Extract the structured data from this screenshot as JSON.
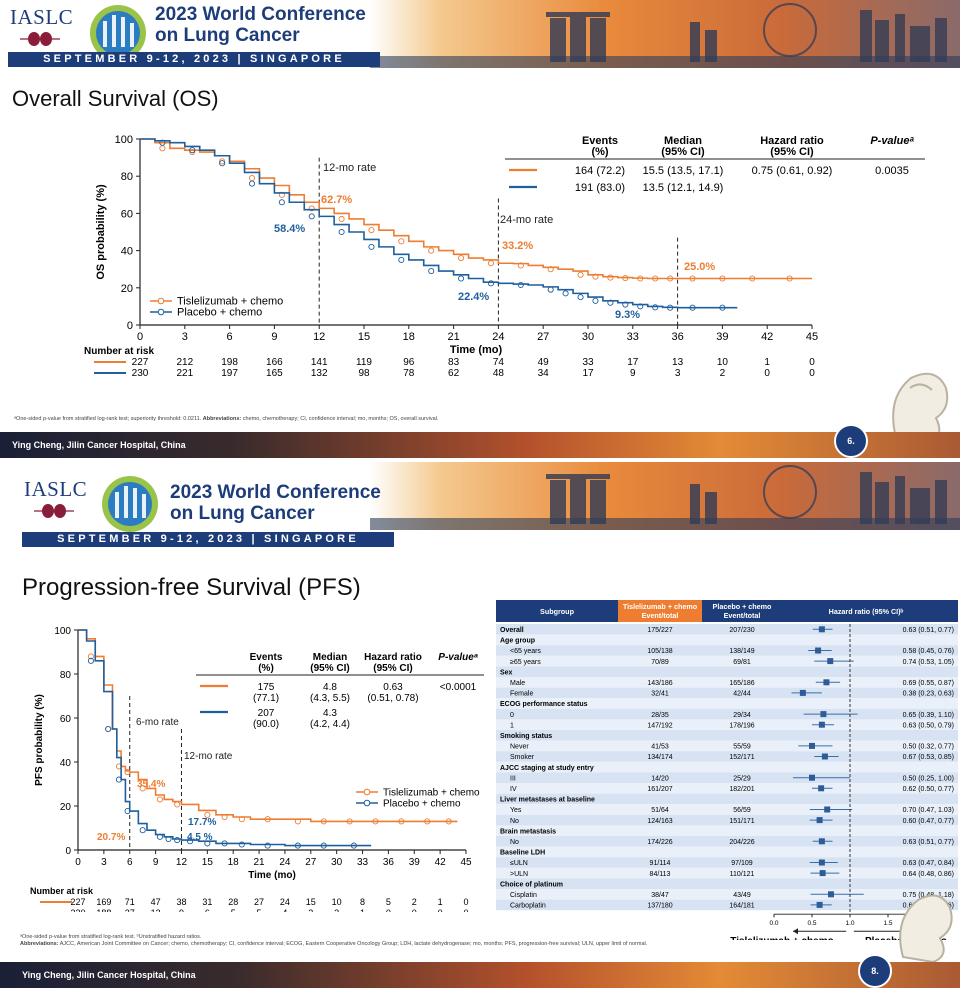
{
  "header": {
    "org": "IASLC",
    "conference_line1": "2023 World Conference",
    "conference_line2": "on Lung Cancer",
    "dates": "SEPTEMBER 9-12, 2023 | SINGAPORE"
  },
  "slides": [
    {
      "title": "Overall Survival (OS)",
      "footnote_lead": "ᵃOne-sided p-value from stratified log-rank test; superiority threshold: 0.0211. ",
      "footnote_abbr_label": "Abbreviations:",
      "footnote_abbr_text": " chemo, chemotherapy; CI, confidence interval; mo, months; OS, overall survival.",
      "footer": "Ying Cheng, Jilin Cancer Hospital, China",
      "page": "6.",
      "table": {
        "headers": [
          "Events\n(%)",
          "Median\n(95% CI)",
          "Hazard ratio\n(95% CI)",
          "P-valueᵃ"
        ],
        "rows": [
          {
            "events": "164 (72.2)",
            "median": "15.5 (13.5, 17.1)",
            "hr": "0.75 (0.61, 0.92)",
            "p": "0.0035"
          },
          {
            "events": "191 (83.0)",
            "median": "13.5 (12.1, 14.9)",
            "hr": "",
            "p": ""
          }
        ]
      }
    },
    {
      "title": "Progression-free Survival (PFS)",
      "footnote1": "ᵃOne-sided p-value from stratified log-rank test. ᵇUnstratified hazard ratios.",
      "footnote2_label": "Abbreviations:",
      "footnote2_text": " AJCC, American Joint Committee on Cancer; chemo, chemotherapy; CI, confidence interval; ECOG, Eastern Cooperative Oncology Group; LDH, lactate dehydrogenase; mo, months; PFS, progression-free survival; ULN, upper limit of normal.",
      "footer": "Ying Cheng, Jilin Cancer Hospital, China",
      "page": "8.",
      "table": {
        "headers": [
          "Events\n(%)",
          "Median\n(95% CI)",
          "Hazard ratio\n(95% CI)",
          "P-valueᵃ"
        ],
        "rows": [
          {
            "events": "175\n(77.1)",
            "median": "4.8\n(4.3, 5.5)",
            "hr": "0.63\n(0.51, 0.78)",
            "p": "<0.0001"
          },
          {
            "events": "207\n(90.0)",
            "median": "4.3\n(4.2, 4.4)",
            "hr": "",
            "p": ""
          }
        ]
      }
    }
  ],
  "colors": {
    "tislelizumab": "#ee7d31",
    "placebo": "#1f5f9e",
    "navy": "#1d3d7a"
  },
  "chart_data": [
    {
      "type": "line",
      "title": "",
      "xlabel": "Time (mo)",
      "ylabel": "OS probability (%)",
      "xlim": [
        0,
        45
      ],
      "ylim": [
        0,
        100
      ],
      "xticks": [
        0,
        3,
        6,
        9,
        12,
        15,
        18,
        21,
        24,
        27,
        30,
        33,
        36,
        39,
        42,
        45
      ],
      "yticks": [
        0,
        20,
        40,
        60,
        80,
        100
      ],
      "legend": "bottom-left",
      "series": [
        {
          "name": "Tislelizumab + chemo",
          "x": [
            0,
            1,
            2,
            3,
            4,
            5,
            6,
            7,
            8,
            9,
            10,
            11,
            12,
            13,
            14,
            15,
            16,
            17,
            18,
            19,
            20,
            21,
            22,
            23,
            24,
            25,
            26,
            27,
            28,
            29,
            30,
            31,
            32,
            33,
            34,
            35,
            36,
            38,
            40,
            42,
            45
          ],
          "y": [
            100,
            98,
            95,
            94,
            93,
            91,
            88,
            84,
            79,
            75,
            70,
            66,
            62.7,
            60,
            57,
            54,
            51,
            48,
            45,
            42,
            40,
            38,
            36,
            35,
            33.2,
            33,
            32,
            31,
            30,
            29,
            27,
            26,
            25.5,
            25.2,
            25,
            25,
            25,
            25,
            25,
            25,
            25
          ]
        },
        {
          "name": "Placebo + chemo",
          "x": [
            0,
            1,
            2,
            3,
            4,
            5,
            6,
            7,
            8,
            9,
            10,
            11,
            12,
            13,
            14,
            15,
            16,
            17,
            18,
            19,
            20,
            21,
            22,
            23,
            24,
            25,
            26,
            27,
            28,
            29,
            30,
            31,
            32,
            33,
            34,
            35,
            36,
            38,
            40
          ],
          "y": [
            100,
            99,
            98,
            96,
            94,
            91,
            87,
            82,
            76,
            71,
            66,
            62,
            58.4,
            54,
            50,
            46,
            42,
            38,
            35,
            32,
            29,
            27,
            25,
            23,
            22.4,
            22,
            21.5,
            20.5,
            19,
            17,
            15,
            13,
            12,
            11,
            10,
            9.5,
            9.3,
            9.3,
            9.3
          ]
        }
      ],
      "annotations": [
        {
          "text": "12-mo rate",
          "x": 12
        },
        {
          "text": "24-mo rate",
          "x": 24
        },
        {
          "text": "62.7%",
          "series": "Tislelizumab + chemo",
          "x": 12
        },
        {
          "text": "58.4%",
          "series": "Placebo + chemo",
          "x": 12
        },
        {
          "text": "33.2%",
          "series": "Tislelizumab + chemo",
          "x": 24
        },
        {
          "text": "22.4%",
          "series": "Placebo + chemo",
          "x": 24
        },
        {
          "text": "25.0%",
          "series": "Tislelizumab + chemo",
          "x": 36
        },
        {
          "text": "9.3%",
          "series": "Placebo + chemo",
          "x": 36
        }
      ],
      "risk_table": {
        "label": "Number at risk",
        "times": [
          0,
          3,
          6,
          9,
          12,
          15,
          18,
          21,
          24,
          27,
          30,
          33,
          36,
          39,
          42,
          45
        ],
        "tislelizumab": [
          227,
          212,
          198,
          166,
          141,
          119,
          96,
          83,
          74,
          49,
          33,
          17,
          13,
          10,
          1,
          0
        ],
        "placebo": [
          230,
          221,
          197,
          165,
          132,
          98,
          78,
          62,
          48,
          34,
          17,
          9,
          3,
          2,
          0,
          0
        ]
      }
    },
    {
      "type": "line",
      "title": "",
      "xlabel": "Time (mo)",
      "ylabel": "PFS probability (%)",
      "xlim": [
        0,
        45
      ],
      "ylim": [
        0,
        100
      ],
      "xticks": [
        0,
        3,
        6,
        9,
        12,
        15,
        18,
        21,
        24,
        27,
        30,
        33,
        36,
        39,
        42,
        45
      ],
      "xtick_labels": [
        "0",
        "3",
        "6",
        "9",
        "12",
        "15",
        "18",
        "21",
        "24",
        "27",
        "30",
        "33",
        "36",
        "39",
        "42",
        "45"
      ],
      "yticks": [
        0,
        20,
        40,
        60,
        80,
        100
      ],
      "legend": "right",
      "series": [
        {
          "name": "Tislelizumab + chemo",
          "x": [
            0,
            1,
            2,
            3,
            4,
            4.5,
            5,
            5.5,
            6,
            7,
            8,
            9,
            10,
            11,
            12,
            14,
            16,
            18,
            20,
            24,
            27,
            30,
            33,
            36,
            39,
            42,
            44
          ],
          "y": [
            100,
            96,
            88,
            75,
            55,
            45,
            38,
            36,
            35.4,
            32,
            28,
            25,
            23,
            22,
            20.7,
            18,
            16,
            15,
            14,
            14,
            13,
            13,
            13,
            13,
            13,
            13,
            13
          ]
        },
        {
          "name": "Placebo + chemo",
          "x": [
            0,
            1,
            2,
            3,
            4,
            4.5,
            5,
            5.5,
            6,
            7,
            8,
            9,
            10,
            11,
            12,
            14,
            16,
            18,
            20,
            24,
            27,
            30,
            34
          ],
          "y": [
            100,
            95,
            86,
            72,
            55,
            42,
            32,
            22,
            17.7,
            12,
            9,
            7,
            6,
            5,
            4.5,
            4,
            3,
            3,
            2.5,
            2,
            2,
            2,
            2
          ]
        }
      ],
      "annotations": [
        {
          "text": "6-mo rate",
          "x": 6
        },
        {
          "text": "12-mo rate",
          "x": 12
        },
        {
          "text": "35.4%",
          "series": "Tislelizumab + chemo",
          "x": 6
        },
        {
          "text": "17.7%",
          "series": "Placebo + chemo",
          "x": 6
        },
        {
          "text": "20.7%",
          "series": "Tislelizumab + chemo",
          "x": 12
        },
        {
          "text": "4.5 %",
          "series": "Placebo + chemo",
          "x": 12
        }
      ],
      "risk_table": {
        "label": "Number at risk",
        "times": [
          0,
          3,
          6,
          9,
          12,
          15,
          18,
          21,
          24,
          27,
          30,
          33,
          36,
          39,
          42,
          45
        ],
        "tislelizumab": [
          227,
          169,
          71,
          47,
          38,
          31,
          28,
          27,
          24,
          15,
          10,
          8,
          5,
          2,
          1,
          0
        ],
        "placebo": [
          230,
          188,
          37,
          13,
          9,
          6,
          5,
          5,
          4,
          2,
          2,
          1,
          0,
          0,
          0,
          0
        ]
      }
    },
    {
      "type": "forest",
      "title": "",
      "columns": [
        "Subgroup",
        "Tislelizumab + chemo\nEvent/total",
        "Placebo + chemo\nEvent/total",
        "Hazard ratio (95% CI)ᵇ"
      ],
      "xaxis_ticks": [
        0.0,
        0.5,
        1.0,
        1.5,
        2.0
      ],
      "xaxis_labels": [
        "0.0",
        "0.5",
        "1.0",
        "1.5",
        "2.0"
      ],
      "left_label": "Tislelizumab + chemo",
      "right_label": "Placebo + chemo",
      "rows": [
        {
          "label": "Overall",
          "header": true,
          "tisl": "175/227",
          "plac": "207/230",
          "hr": 0.63,
          "lo": 0.51,
          "hi": 0.77,
          "text": "0.63 (0.51, 0.77)"
        },
        {
          "label": "Age group",
          "header": true
        },
        {
          "label": "<65 years",
          "tisl": "105/138",
          "plac": "138/149",
          "hr": 0.58,
          "lo": 0.45,
          "hi": 0.76,
          "text": "0.58 (0.45, 0.76)"
        },
        {
          "label": "≥65 years",
          "tisl": "70/89",
          "plac": "69/81",
          "hr": 0.74,
          "lo": 0.53,
          "hi": 1.05,
          "text": "0.74 (0.53, 1.05)"
        },
        {
          "label": "Sex",
          "header": true
        },
        {
          "label": "Male",
          "tisl": "143/186",
          "plac": "165/186",
          "hr": 0.69,
          "lo": 0.55,
          "hi": 0.87,
          "text": "0.69 (0.55, 0.87)"
        },
        {
          "label": "Female",
          "tisl": "32/41",
          "plac": "42/44",
          "hr": 0.38,
          "lo": 0.23,
          "hi": 0.63,
          "text": "0.38 (0.23, 0.63)"
        },
        {
          "label": "ECOG performance status",
          "header": true
        },
        {
          "label": "0",
          "tisl": "28/35",
          "plac": "29/34",
          "hr": 0.65,
          "lo": 0.39,
          "hi": 1.1,
          "text": "0.65 (0.39, 1.10)"
        },
        {
          "label": "1",
          "tisl": "147/192",
          "plac": "178/196",
          "hr": 0.63,
          "lo": 0.5,
          "hi": 0.79,
          "text": "0.63 (0.50, 0.79)"
        },
        {
          "label": "Smoking status",
          "header": true
        },
        {
          "label": "Never",
          "tisl": "41/53",
          "plac": "55/59",
          "hr": 0.5,
          "lo": 0.32,
          "hi": 0.77,
          "text": "0.50 (0.32, 0.77)"
        },
        {
          "label": "Smoker",
          "tisl": "134/174",
          "plac": "152/171",
          "hr": 0.67,
          "lo": 0.53,
          "hi": 0.85,
          "text": "0.67 (0.53, 0.85)"
        },
        {
          "label": "AJCC staging at study entry",
          "header": true
        },
        {
          "label": "III",
          "tisl": "14/20",
          "plac": "25/29",
          "hr": 0.5,
          "lo": 0.25,
          "hi": 1.0,
          "text": "0.50 (0.25, 1.00)"
        },
        {
          "label": "IV",
          "tisl": "161/207",
          "plac": "182/201",
          "hr": 0.62,
          "lo": 0.5,
          "hi": 0.77,
          "text": "0.62 (0.50, 0.77)"
        },
        {
          "label": "Liver metastases at baseline",
          "header": true
        },
        {
          "label": "Yes",
          "tisl": "51/64",
          "plac": "56/59",
          "hr": 0.7,
          "lo": 0.47,
          "hi": 1.03,
          "text": "0.70 (0.47, 1.03)"
        },
        {
          "label": "No",
          "tisl": "124/163",
          "plac": "151/171",
          "hr": 0.6,
          "lo": 0.47,
          "hi": 0.77,
          "text": "0.60 (0.47, 0.77)"
        },
        {
          "label": "Brain metastasis",
          "header": true
        },
        {
          "label": "No",
          "tisl": "174/226",
          "plac": "204/226",
          "hr": 0.63,
          "lo": 0.51,
          "hi": 0.77,
          "text": "0.63 (0.51, 0.77)"
        },
        {
          "label": "Baseline LDH",
          "header": true
        },
        {
          "label": "≤ULN",
          "tisl": "91/114",
          "plac": "97/109",
          "hr": 0.63,
          "lo": 0.47,
          "hi": 0.84,
          "text": "0.63 (0.47, 0.84)"
        },
        {
          "label": ">ULN",
          "tisl": "84/113",
          "plac": "110/121",
          "hr": 0.64,
          "lo": 0.48,
          "hi": 0.86,
          "text": "0.64 (0.48, 0.86)"
        },
        {
          "label": "Choice of platinum",
          "header": true
        },
        {
          "label": "Cisplatin",
          "tisl": "38/47",
          "plac": "43/49",
          "hr": 0.75,
          "lo": 0.48,
          "hi": 1.18,
          "text": "0.75 (0.48, 1.18)"
        },
        {
          "label": "Carboplatin",
          "tisl": "137/180",
          "plac": "164/181",
          "hr": 0.6,
          "lo": 0.48,
          "hi": 0.76,
          "text": "0.60 (0.48, 0.76)"
        }
      ]
    }
  ]
}
